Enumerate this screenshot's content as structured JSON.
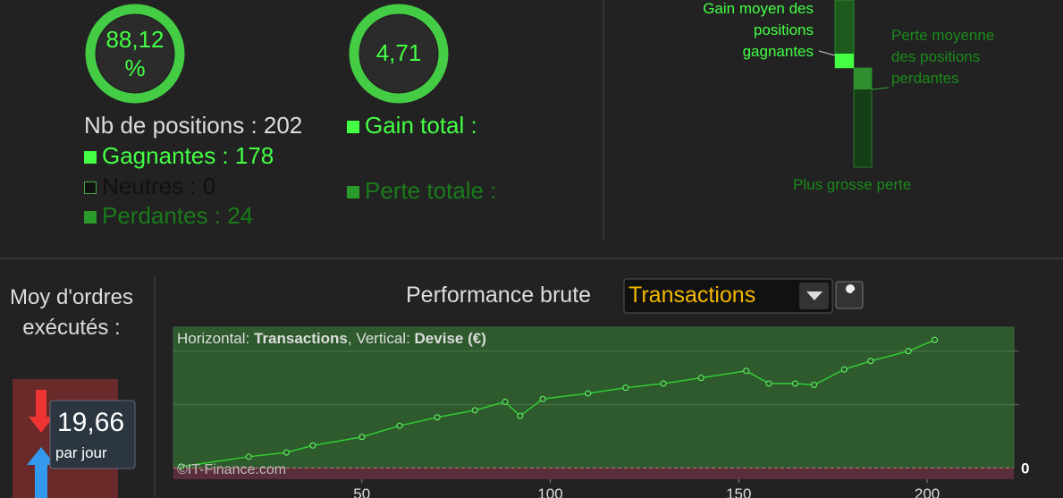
{
  "summary": {
    "win_rate": "88,12 %",
    "ratio": "4,71",
    "positions": "Nb de positions : 202",
    "winners": "Gagnantes : 178",
    "neutral": "Neutres : 0",
    "losers": "Perdantes : 24",
    "gain_total": "Gain total :",
    "loss_total": "Perte totale :"
  },
  "bars": {
    "avg_gain": "Gain moyen des positions gagnantes",
    "avg_loss": "Perte moyenne des positions perdantes",
    "max_loss": "Plus grosse perte"
  },
  "orders": {
    "label": "Moy d'ordres exécutés :",
    "value": "19,66",
    "unit": "par jour"
  },
  "header": {
    "title": "Performance brute",
    "dropdown": "Transactions"
  },
  "chart_data": {
    "type": "line",
    "caption": {
      "h_label": "Horizontal:",
      "h_value": "Transactions",
      "v_label": ", Vertical:",
      "v_value": "Devise (€)"
    },
    "watermark": "©IT-Finance.com",
    "x": [
      2,
      20,
      30,
      37,
      50,
      60,
      70,
      80,
      88,
      92,
      98,
      110,
      120,
      130,
      140,
      152,
      158,
      165,
      170,
      178,
      185,
      195,
      202
    ],
    "series": [
      {
        "name": "Performance brute",
        "color": "#3c3",
        "values": [
          1,
          8,
          11,
          16,
          22,
          30,
          36,
          41,
          47,
          37,
          49,
          53,
          57,
          60,
          64,
          69,
          60,
          60,
          59,
          70,
          76,
          83,
          91
        ]
      }
    ],
    "xlim": [
      0,
      223
    ],
    "xticks": [
      50,
      100,
      150,
      200
    ],
    "ylim": [
      -8,
      100
    ],
    "yticks": [
      0
    ]
  }
}
